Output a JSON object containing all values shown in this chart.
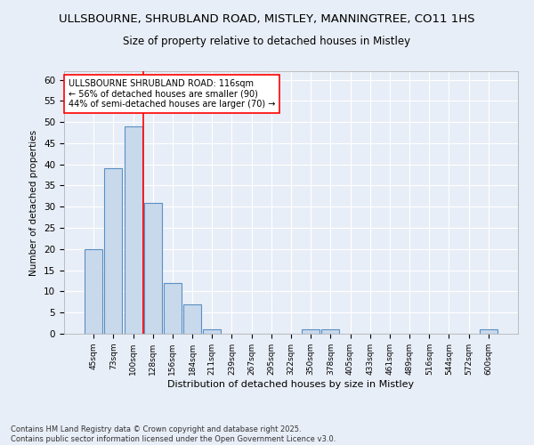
{
  "title1": "ULLSBOURNE, SHRUBLAND ROAD, MISTLEY, MANNINGTREE, CO11 1HS",
  "title2": "Size of property relative to detached houses in Mistley",
  "xlabel": "Distribution of detached houses by size in Mistley",
  "ylabel": "Number of detached properties",
  "categories": [
    "45sqm",
    "73sqm",
    "100sqm",
    "128sqm",
    "156sqm",
    "184sqm",
    "211sqm",
    "239sqm",
    "267sqm",
    "295sqm",
    "322sqm",
    "350sqm",
    "378sqm",
    "405sqm",
    "433sqm",
    "461sqm",
    "489sqm",
    "516sqm",
    "544sqm",
    "572sqm",
    "600sqm"
  ],
  "values": [
    20,
    39,
    49,
    31,
    12,
    7,
    1,
    0,
    0,
    0,
    0,
    1,
    1,
    0,
    0,
    0,
    0,
    0,
    0,
    0,
    1
  ],
  "bar_color": "#c9d9ec",
  "bar_edge_color": "#5a8fc3",
  "vline_x_index": 2.5,
  "vline_color": "red",
  "annotation_text": "ULLSBOURNE SHRUBLAND ROAD: 116sqm\n← 56% of detached houses are smaller (90)\n44% of semi-detached houses are larger (70) →",
  "annotation_box_color": "white",
  "annotation_box_edge": "red",
  "ylim": [
    0,
    62
  ],
  "yticks": [
    0,
    5,
    10,
    15,
    20,
    25,
    30,
    35,
    40,
    45,
    50,
    55,
    60
  ],
  "footer": "Contains HM Land Registry data © Crown copyright and database right 2025.\nContains public sector information licensed under the Open Government Licence v3.0.",
  "bg_color": "#e8eef7",
  "plot_bg_color": "#e8eef7",
  "grid_color": "white",
  "title_fontsize": 9.5,
  "subtitle_fontsize": 8.5
}
